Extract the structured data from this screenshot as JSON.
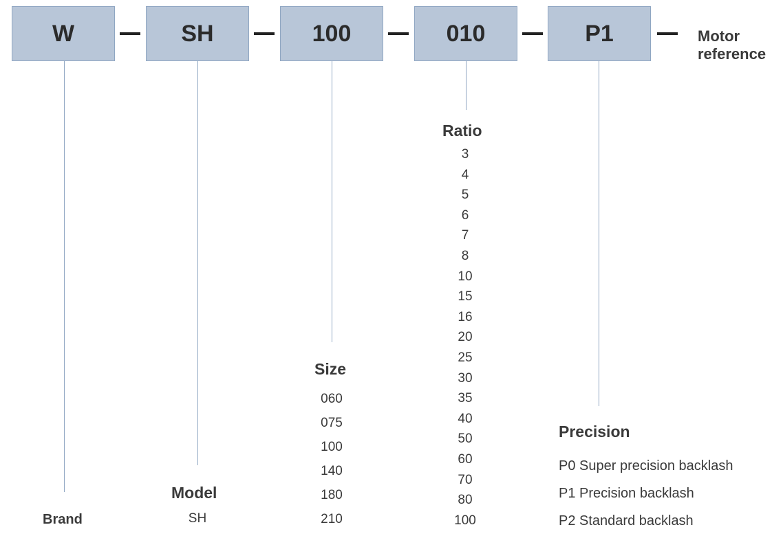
{
  "code_segments": [
    "W",
    "SH",
    "100",
    "010",
    "P1"
  ],
  "motor_reference": [
    "Motor",
    "reference"
  ],
  "brand": {
    "label": "Brand"
  },
  "model": {
    "label": "Model",
    "values": [
      "SH"
    ]
  },
  "size": {
    "label": "Size",
    "values": [
      "060",
      "075",
      "100",
      "140",
      "180",
      "210"
    ]
  },
  "ratio": {
    "label": "Ratio",
    "values": [
      "3",
      "4",
      "5",
      "6",
      "7",
      "8",
      "10",
      "15",
      "16",
      "20",
      "25",
      "30",
      "35",
      "40",
      "50",
      "60",
      "70",
      "80",
      "100"
    ]
  },
  "precision": {
    "label": "Precision",
    "values": [
      "P0 Super precision backlash",
      "P1 Precision backlash",
      "P2 Standard backlash"
    ]
  },
  "colors": {
    "box_fill": "#b8c6d8",
    "box_border": "#8fa6c2",
    "connector": "#222222",
    "leader_line": "#8fa6c2"
  }
}
